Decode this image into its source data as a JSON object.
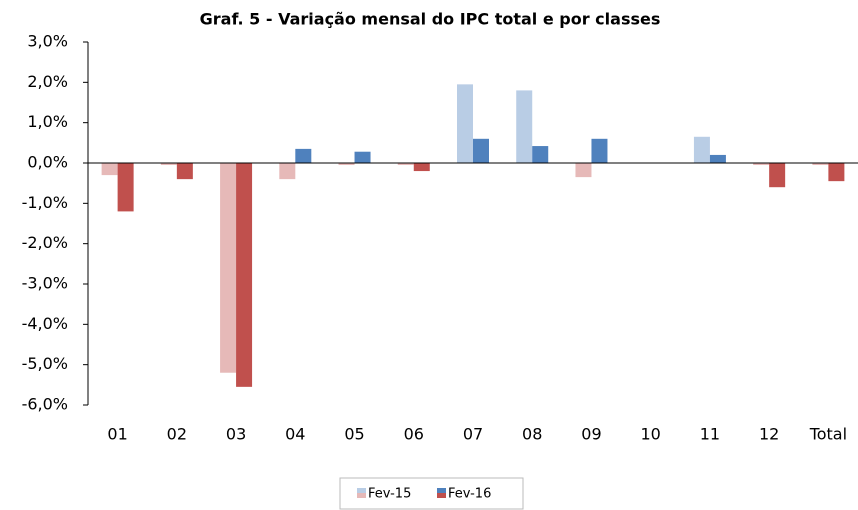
{
  "chart_data": {
    "type": "bar",
    "title": "Graf. 5 - Variação mensal do IPC total e por classes",
    "categories": [
      "01",
      "02",
      "03",
      "04",
      "05",
      "06",
      "07",
      "08",
      "09",
      "10",
      "11",
      "12",
      "Total"
    ],
    "series": [
      {
        "name": "Fev-15",
        "color": "#b9cde5",
        "negative_color": "#e6b9b8",
        "values": [
          -0.3,
          -0.05,
          -5.2,
          -0.4,
          -0.05,
          -0.05,
          1.95,
          1.8,
          -0.35,
          0,
          0.65,
          -0.05,
          -0.05
        ]
      },
      {
        "name": "Fev-16",
        "color": "#4f81bd",
        "negative_color": "#c0504d",
        "values": [
          -1.2,
          -0.4,
          -5.55,
          0.35,
          0.28,
          -0.2,
          0.6,
          0.42,
          0.6,
          0,
          0.2,
          -0.6,
          -0.45
        ]
      }
    ],
    "ylim": [
      -6,
      3
    ],
    "yticks": [
      {
        "value": -6,
        "label": "-6,0%"
      },
      {
        "value": -5,
        "label": "-5,0%"
      },
      {
        "value": -4,
        "label": "-4,0%"
      },
      {
        "value": -3,
        "label": "-3,0%"
      },
      {
        "value": -2,
        "label": "-2,0%"
      },
      {
        "value": -1,
        "label": "-1,0%"
      },
      {
        "value": 0,
        "label": "0,0%"
      },
      {
        "value": 1,
        "label": "1,0%"
      },
      {
        "value": 2,
        "label": "2,0%"
      },
      {
        "value": 3,
        "label": "3,0%"
      }
    ],
    "grid": false,
    "legend": "bottom"
  }
}
